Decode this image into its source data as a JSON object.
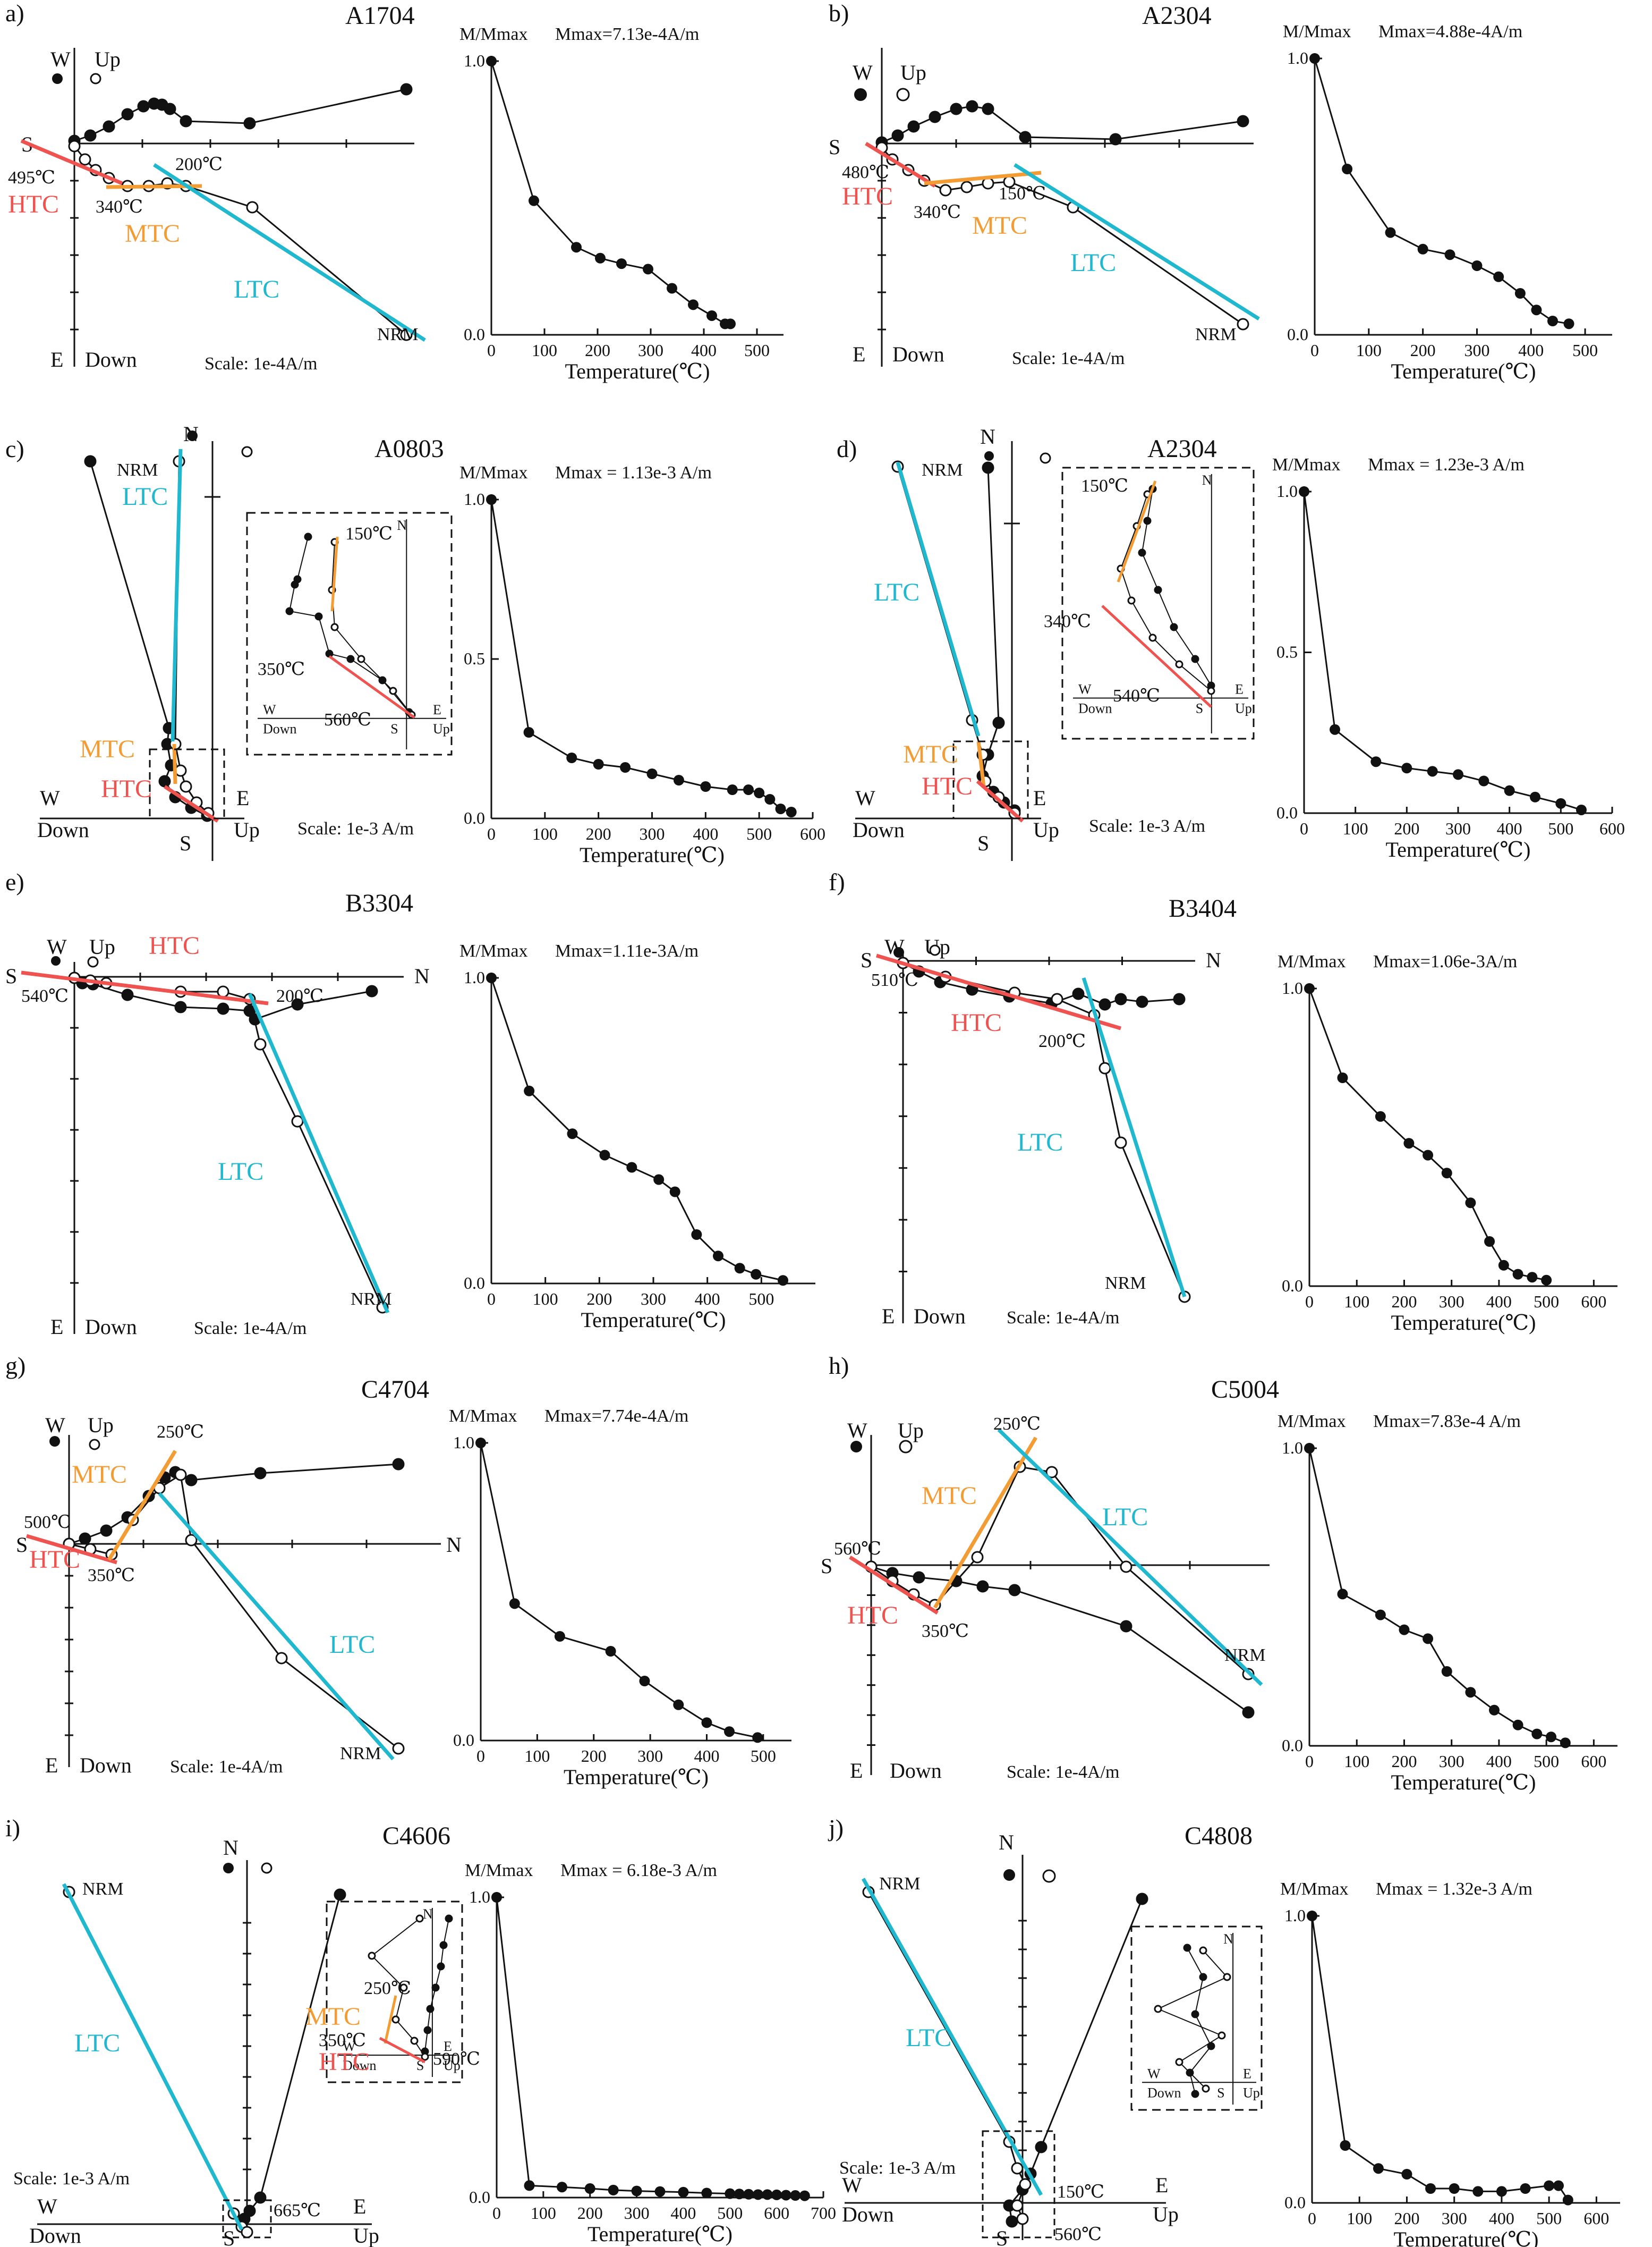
{
  "colors": {
    "htc": "#ef5350",
    "mtc": "#f39c34",
    "ltc": "#20b8cf",
    "ink": "#111111"
  },
  "axis_words": {
    "up": "Up",
    "down": "Down",
    "ylabel": "M/Mmax",
    "xlabel": "Temperature(℃)",
    "nrm": "NRM"
  },
  "panels": [
    {
      "letter": "a)",
      "id": "A1704",
      "mmax": "Mmax=7.13e-4A/m",
      "scale": "Scale: 1e-4A/m",
      "temp_labels": [
        "495℃",
        "340℃",
        "200℃"
      ],
      "components": [
        "HTC",
        "MTC",
        "LTC"
      ],
      "dir_words": [
        "W",
        "S",
        "E"
      ],
      "chart_data": {
        "type": "line",
        "title": "A1704",
        "xlabel": "Temperature(℃)",
        "ylabel": "M/Mmax",
        "xlim": [
          0,
          550
        ],
        "ylim": [
          0,
          1
        ],
        "xticks": [
          0,
          100,
          200,
          300,
          400,
          500
        ],
        "yticks": [
          0.0,
          1.0
        ],
        "x": [
          0,
          80,
          160,
          205,
          245,
          295,
          340,
          380,
          415,
          440,
          450
        ],
        "y": [
          1.0,
          0.49,
          0.32,
          0.28,
          0.26,
          0.24,
          0.17,
          0.11,
          0.07,
          0.04,
          0.04
        ]
      }
    },
    {
      "letter": "b)",
      "id": "A2304",
      "mmax": "Mmax=4.88e-4A/m",
      "scale": "Scale: 1e-4A/m",
      "temp_labels": [
        "480℃",
        "340℃",
        "150℃"
      ],
      "components": [
        "HTC",
        "MTC",
        "LTC"
      ],
      "dir_words": [
        "W",
        "S",
        "E"
      ],
      "chart_data": {
        "type": "line",
        "title": "A2304",
        "xlabel": "Temperature(℃)",
        "ylabel": "M/Mmax",
        "xlim": [
          0,
          550
        ],
        "ylim": [
          0,
          1
        ],
        "xticks": [
          0,
          100,
          200,
          300,
          400,
          500
        ],
        "yticks": [
          0.0,
          1.0
        ],
        "x": [
          0,
          60,
          140,
          200,
          250,
          300,
          340,
          380,
          410,
          440,
          470
        ],
        "y": [
          1.0,
          0.6,
          0.37,
          0.31,
          0.29,
          0.25,
          0.21,
          0.15,
          0.09,
          0.05,
          0.04
        ]
      }
    },
    {
      "letter": "c)",
      "id": "A0803",
      "mmax": "Mmax = 1.13e-3 A/m",
      "scale": "Scale: 1e-3 A/m",
      "temp_labels": [
        "150℃",
        "350℃",
        "560℃"
      ],
      "components": [
        "LTC",
        "MTC",
        "HTC"
      ],
      "dir_words": [
        "N",
        "W",
        "E",
        "S"
      ],
      "inset_words": [
        "N",
        "W",
        "Down",
        "E",
        "S",
        "Up"
      ],
      "chart_data": {
        "type": "line",
        "title": "A0803",
        "xlabel": "Temperature(℃)",
        "ylabel": "M/Mmax",
        "xlim": [
          0,
          600
        ],
        "ylim": [
          0,
          1
        ],
        "xticks": [
          0,
          100,
          200,
          300,
          400,
          500,
          600
        ],
        "yticks": [
          0.0,
          0.5,
          1.0
        ],
        "x": [
          0,
          70,
          150,
          200,
          250,
          300,
          350,
          400,
          450,
          480,
          500,
          520,
          540,
          560
        ],
        "y": [
          1.0,
          0.27,
          0.19,
          0.17,
          0.16,
          0.14,
          0.12,
          0.1,
          0.09,
          0.09,
          0.08,
          0.06,
          0.03,
          0.02
        ]
      }
    },
    {
      "letter": "d)",
      "id": "A2304",
      "mmax": "Mmax = 1.23e-3 A/m",
      "scale": "Scale: 1e-3 A/m",
      "temp_labels": [
        "150℃",
        "340℃",
        "540℃"
      ],
      "components": [
        "LTC",
        "MTC",
        "HTC"
      ],
      "dir_words": [
        "N",
        "W",
        "E",
        "S"
      ],
      "inset_words": [
        "N",
        "W",
        "Down",
        "E",
        "S",
        "Up"
      ],
      "chart_data": {
        "type": "line",
        "title": "A2304",
        "xlabel": "Temperature(℃)",
        "ylabel": "M/Mmax",
        "xlim": [
          0,
          600
        ],
        "ylim": [
          0,
          1
        ],
        "xticks": [
          0,
          100,
          200,
          300,
          400,
          500,
          600
        ],
        "yticks": [
          0.0,
          0.5,
          1.0
        ],
        "x": [
          0,
          60,
          140,
          200,
          250,
          300,
          350,
          400,
          450,
          500,
          540
        ],
        "y": [
          1.0,
          0.26,
          0.16,
          0.14,
          0.13,
          0.12,
          0.1,
          0.07,
          0.05,
          0.03,
          0.01
        ]
      }
    },
    {
      "letter": "e)",
      "id": "B3304",
      "mmax": "Mmax=1.11e-3A/m",
      "scale": "Scale: 1e-4A/m",
      "temp_labels": [
        "540℃",
        "200℃"
      ],
      "components": [
        "HTC",
        "LTC"
      ],
      "dir_words": [
        "W",
        "S",
        "N",
        "E"
      ],
      "chart_data": {
        "type": "line",
        "title": "B3304",
        "xlabel": "Temperature(℃)",
        "ylabel": "M/Mmax",
        "xlim": [
          0,
          600
        ],
        "ylim": [
          0,
          1
        ],
        "xticks": [
          0,
          100,
          200,
          300,
          400,
          500
        ],
        "yticks": [
          0.0,
          1.0
        ],
        "x": [
          0,
          70,
          150,
          210,
          260,
          310,
          340,
          380,
          420,
          460,
          490,
          540
        ],
        "y": [
          1.0,
          0.63,
          0.49,
          0.42,
          0.38,
          0.34,
          0.3,
          0.16,
          0.09,
          0.05,
          0.03,
          0.01
        ]
      }
    },
    {
      "letter": "f)",
      "id": "B3404",
      "mmax": "Mmax=1.06e-3A/m",
      "scale": "Scale: 1e-4A/m",
      "temp_labels": [
        "510℃",
        "200℃"
      ],
      "components": [
        "HTC",
        "LTC"
      ],
      "dir_words": [
        "W",
        "S",
        "N",
        "E"
      ],
      "chart_data": {
        "type": "line",
        "title": "B3404",
        "xlabel": "Temperature(℃)",
        "ylabel": "M/Mmax",
        "xlim": [
          0,
          650
        ],
        "ylim": [
          0,
          1
        ],
        "xticks": [
          0,
          100,
          200,
          300,
          400,
          500,
          600
        ],
        "yticks": [
          0.0,
          1.0
        ],
        "x": [
          0,
          70,
          150,
          210,
          250,
          290,
          340,
          380,
          410,
          440,
          470,
          500
        ],
        "y": [
          1.0,
          0.7,
          0.57,
          0.48,
          0.44,
          0.38,
          0.28,
          0.15,
          0.07,
          0.04,
          0.03,
          0.02
        ]
      }
    },
    {
      "letter": "g)",
      "id": "C4704",
      "mmax": "Mmax=7.74e-4A/m",
      "scale": "Scale: 1e-4A/m",
      "temp_labels": [
        "250℃",
        "500℃",
        "350℃"
      ],
      "components": [
        "MTC",
        "HTC",
        "LTC"
      ],
      "dir_words": [
        "W",
        "S",
        "N",
        "E"
      ],
      "chart_data": {
        "type": "line",
        "title": "C4704",
        "xlabel": "Temperature(℃)",
        "ylabel": "M/Mmax",
        "xlim": [
          0,
          550
        ],
        "ylim": [
          0,
          1
        ],
        "xticks": [
          0,
          100,
          200,
          300,
          400,
          500
        ],
        "yticks": [
          0.0,
          1.0
        ],
        "x": [
          0,
          60,
          140,
          230,
          290,
          350,
          400,
          440,
          490
        ],
        "y": [
          1.0,
          0.46,
          0.35,
          0.3,
          0.2,
          0.12,
          0.06,
          0.03,
          0.01
        ]
      }
    },
    {
      "letter": "h)",
      "id": "C5004",
      "mmax": "Mmax=7.83e-4 A/m",
      "scale": "Scale: 1e-4A/m",
      "temp_labels": [
        "250℃",
        "560℃",
        "350℃"
      ],
      "components": [
        "MTC",
        "LTC",
        "HTC"
      ],
      "dir_words": [
        "W",
        "S",
        "E"
      ],
      "chart_data": {
        "type": "line",
        "title": "C5004",
        "xlabel": "Temperature(℃)",
        "ylabel": "M/Mmax",
        "xlim": [
          0,
          650
        ],
        "ylim": [
          0,
          1
        ],
        "xticks": [
          0,
          100,
          200,
          300,
          400,
          500,
          600
        ],
        "yticks": [
          0.0,
          1.0
        ],
        "x": [
          0,
          70,
          150,
          200,
          250,
          290,
          340,
          390,
          440,
          480,
          510,
          540
        ],
        "y": [
          1.0,
          0.51,
          0.44,
          0.39,
          0.36,
          0.25,
          0.18,
          0.12,
          0.07,
          0.04,
          0.03,
          0.01
        ]
      }
    },
    {
      "letter": "i)",
      "id": "C4606",
      "mmax": "Mmax = 6.18e-3 A/m",
      "scale": "Scale: 1e-3 A/m",
      "temp_labels": [
        "250℃",
        "350℃",
        "590℃",
        "665℃"
      ],
      "components": [
        "LTC",
        "MTC",
        "HTC"
      ],
      "dir_words": [
        "N",
        "W",
        "E",
        "S"
      ],
      "inset_words": [
        "N",
        "W",
        "Down",
        "E",
        "S",
        "Up"
      ],
      "chart_data": {
        "type": "line",
        "title": "C4606",
        "xlabel": "Temperature(℃)",
        "ylabel": "M/Mmax",
        "xlim": [
          0,
          700
        ],
        "ylim": [
          0,
          1
        ],
        "xticks": [
          0,
          100,
          200,
          300,
          400,
          500,
          600,
          700
        ],
        "yticks": [
          0.0,
          1.0
        ],
        "x": [
          0,
          70,
          140,
          200,
          250,
          300,
          350,
          400,
          450,
          500,
          520,
          540,
          560,
          580,
          600,
          620,
          640,
          660
        ],
        "y": [
          1.0,
          0.04,
          0.035,
          0.03,
          0.025,
          0.022,
          0.02,
          0.018,
          0.015,
          0.013,
          0.012,
          0.011,
          0.01,
          0.01,
          0.009,
          0.008,
          0.007,
          0.006
        ]
      }
    },
    {
      "letter": "j)",
      "id": "C4808",
      "mmax": "Mmax = 1.32e-3 A/m",
      "scale": "Scale: 1e-3 A/m",
      "temp_labels": [
        "150℃",
        "560℃"
      ],
      "components": [
        "LTC"
      ],
      "dir_words": [
        "N",
        "W",
        "E",
        "S"
      ],
      "inset_words": [
        "N",
        "W",
        "Down",
        "E",
        "S",
        "Up"
      ],
      "chart_data": {
        "type": "line",
        "title": "C4808",
        "xlabel": "Temperature(℃)",
        "ylabel": "M/Mmax",
        "xlim": [
          0,
          650
        ],
        "ylim": [
          0,
          1
        ],
        "xticks": [
          0,
          100,
          200,
          300,
          400,
          500,
          600
        ],
        "yticks": [
          0.0,
          1.0
        ],
        "x": [
          0,
          70,
          140,
          200,
          250,
          300,
          350,
          400,
          450,
          500,
          520,
          540
        ],
        "y": [
          1.0,
          0.2,
          0.12,
          0.1,
          0.05,
          0.05,
          0.04,
          0.04,
          0.05,
          0.06,
          0.06,
          0.01
        ]
      }
    }
  ]
}
